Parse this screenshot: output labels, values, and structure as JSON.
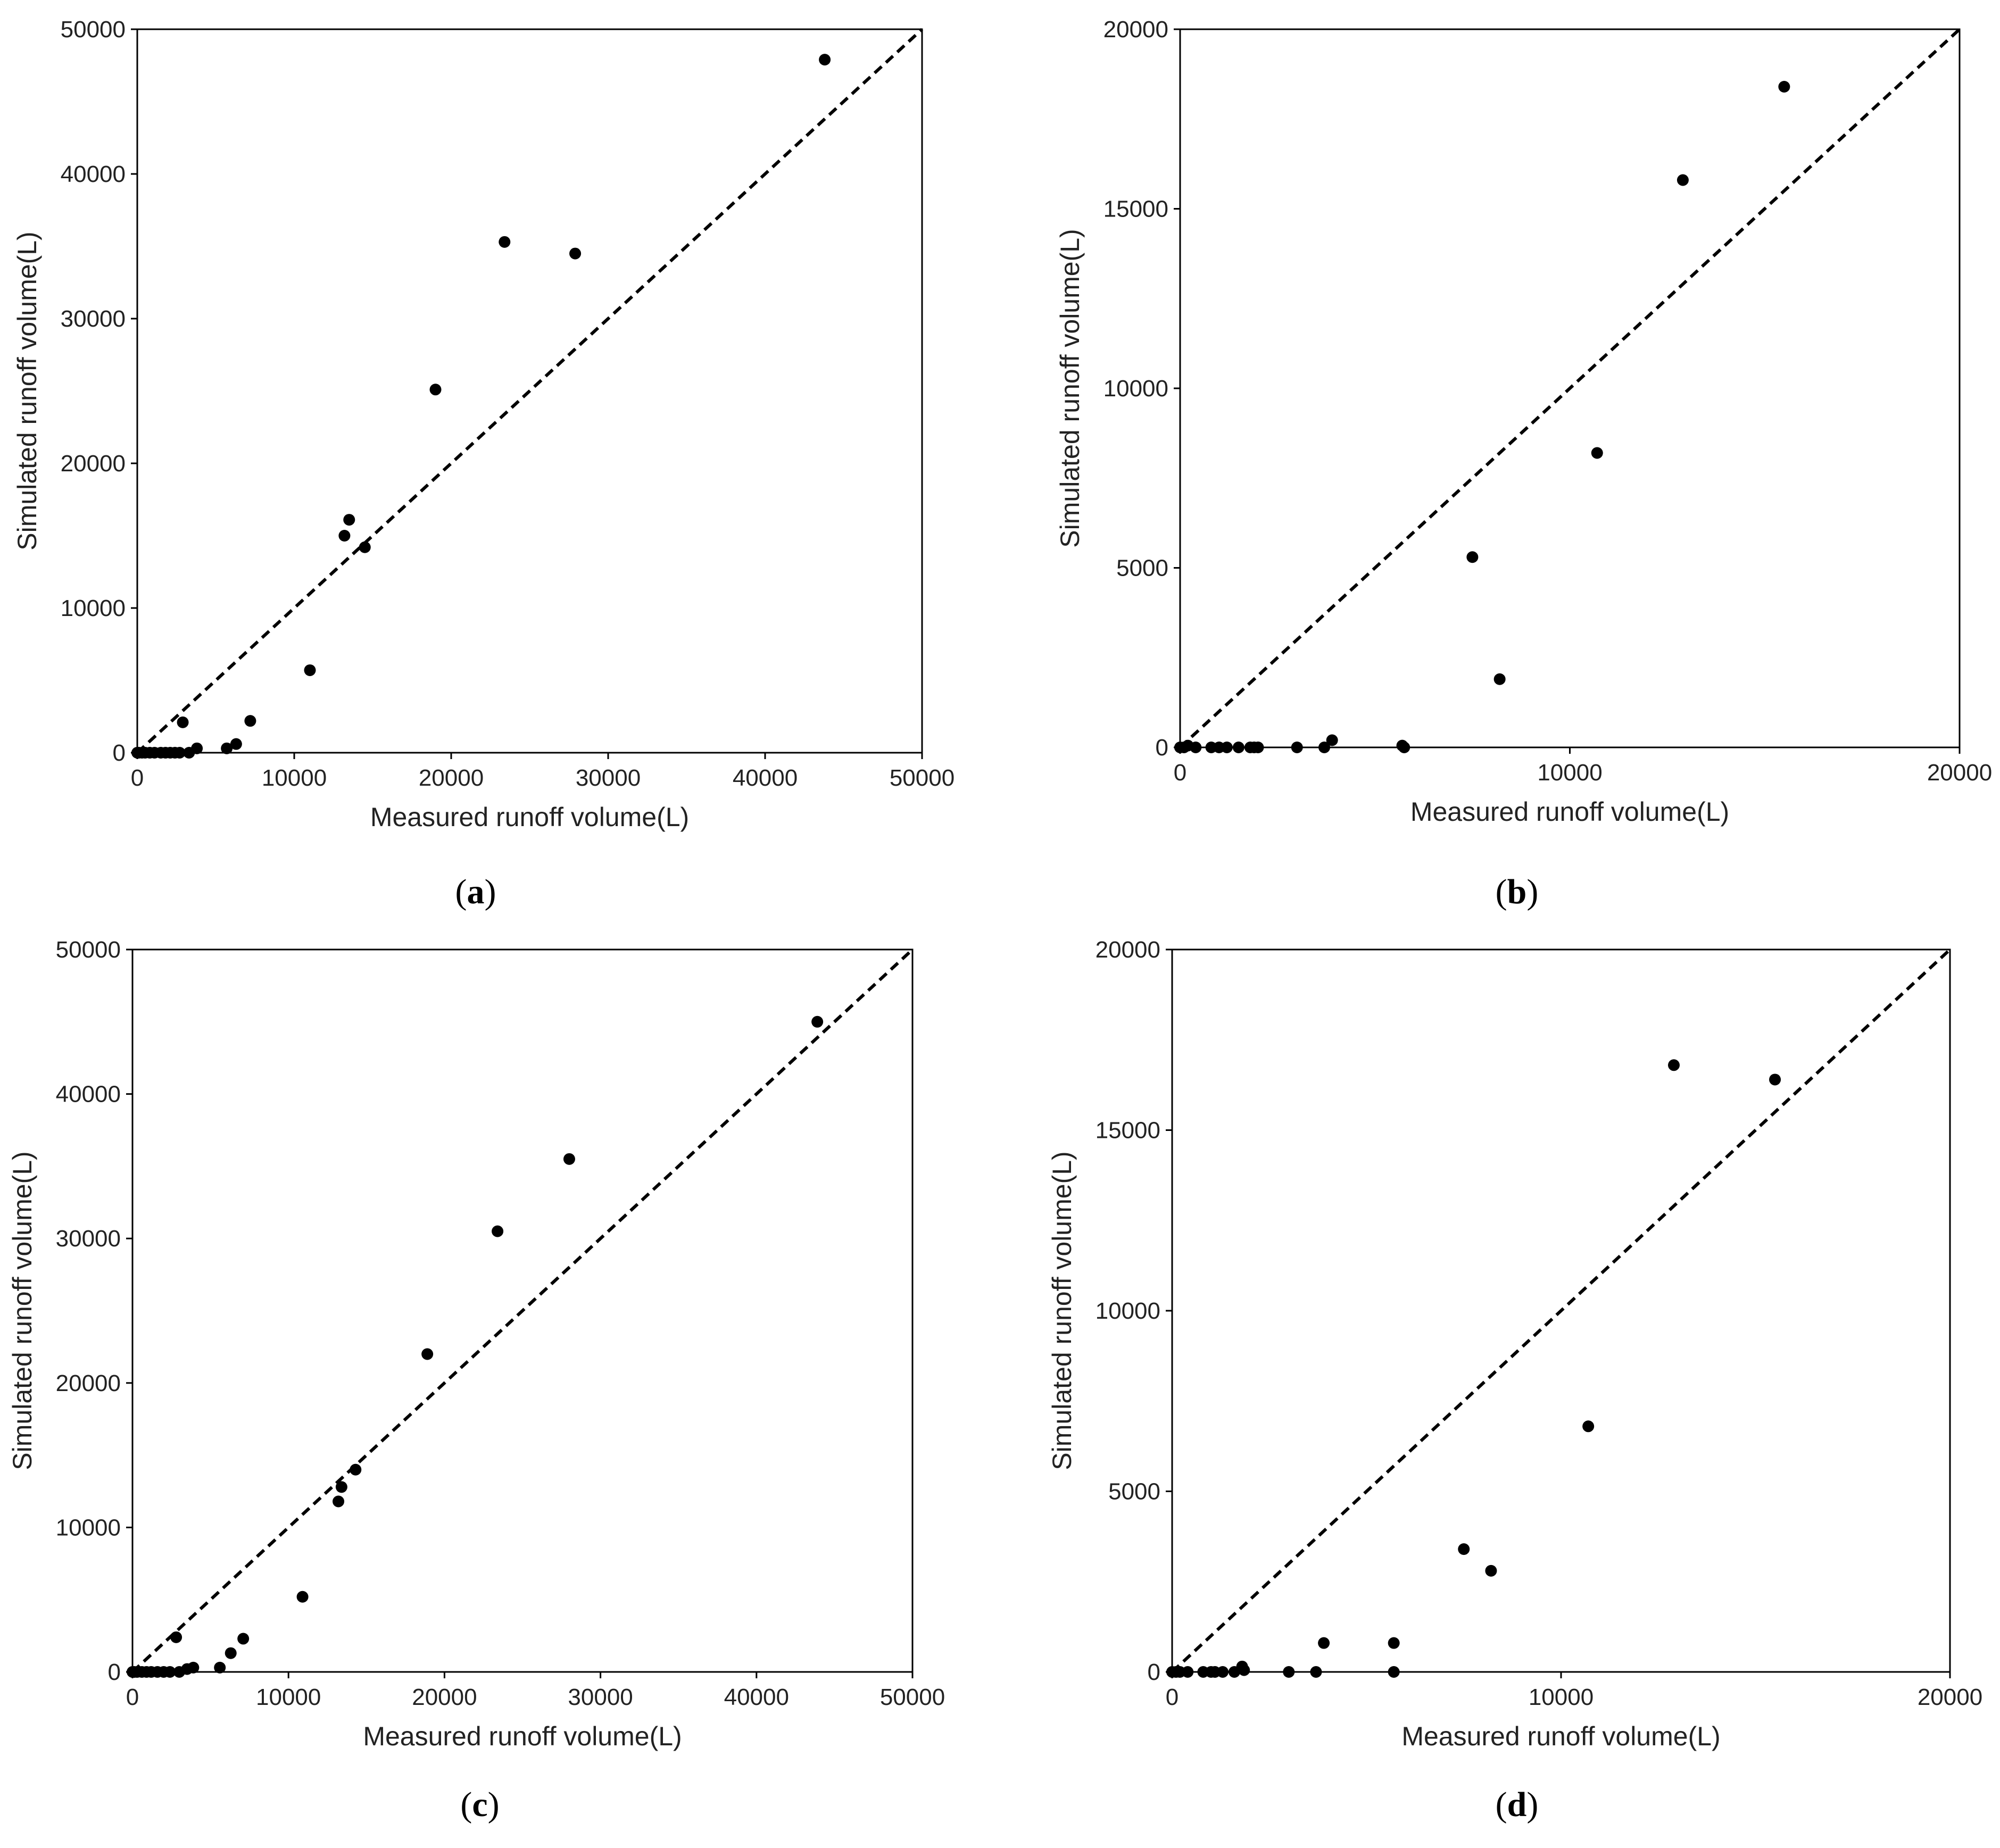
{
  "colors": {
    "background": "#ffffff",
    "frame": "#000000",
    "point": "#000000",
    "reference_line": "#000000",
    "text": "#222222"
  },
  "chart_data": [
    {
      "panel": "a",
      "type": "scatter",
      "xlabel": "Measured runoff volume(L)",
      "ylabel": "Simulated runoff volume(L)",
      "xlim": [
        0,
        50000
      ],
      "ylim": [
        0,
        50000
      ],
      "xticks": [
        0,
        10000,
        20000,
        30000,
        40000,
        50000
      ],
      "yticks": [
        0,
        10000,
        20000,
        30000,
        40000,
        50000
      ],
      "reference_line": "1:1",
      "grid": false,
      "points": [
        {
          "x": 0,
          "y": 0
        },
        {
          "x": 100,
          "y": 0
        },
        {
          "x": 300,
          "y": 0
        },
        {
          "x": 500,
          "y": 0
        },
        {
          "x": 800,
          "y": 0
        },
        {
          "x": 1100,
          "y": 0
        },
        {
          "x": 1500,
          "y": 0
        },
        {
          "x": 1800,
          "y": 0
        },
        {
          "x": 2100,
          "y": 0
        },
        {
          "x": 2400,
          "y": 0
        },
        {
          "x": 2700,
          "y": 0
        },
        {
          "x": 2900,
          "y": 2100
        },
        {
          "x": 3300,
          "y": 0
        },
        {
          "x": 3800,
          "y": 300
        },
        {
          "x": 5700,
          "y": 300
        },
        {
          "x": 6300,
          "y": 600
        },
        {
          "x": 7200,
          "y": 2200
        },
        {
          "x": 11000,
          "y": 5700
        },
        {
          "x": 13200,
          "y": 15000
        },
        {
          "x": 13500,
          "y": 16100
        },
        {
          "x": 14500,
          "y": 14200
        },
        {
          "x": 19000,
          "y": 25100
        },
        {
          "x": 23400,
          "y": 35300
        },
        {
          "x": 27900,
          "y": 34500
        },
        {
          "x": 43800,
          "y": 47900
        }
      ]
    },
    {
      "panel": "b",
      "type": "scatter",
      "xlabel": "Measured runoff volume(L)",
      "ylabel": "Simulated runoff volume(L)",
      "xlim": [
        0,
        20000
      ],
      "ylim": [
        0,
        20000
      ],
      "xticks": [
        0,
        10000,
        20000
      ],
      "yticks": [
        0,
        5000,
        10000,
        15000,
        20000
      ],
      "reference_line": "1:1",
      "grid": false,
      "points": [
        {
          "x": 0,
          "y": 0
        },
        {
          "x": 100,
          "y": 0
        },
        {
          "x": 200,
          "y": 50
        },
        {
          "x": 400,
          "y": 0
        },
        {
          "x": 800,
          "y": 0
        },
        {
          "x": 1000,
          "y": 0
        },
        {
          "x": 1200,
          "y": 0
        },
        {
          "x": 1500,
          "y": 0
        },
        {
          "x": 1800,
          "y": 0
        },
        {
          "x": 1900,
          "y": 0
        },
        {
          "x": 2000,
          "y": 0
        },
        {
          "x": 3000,
          "y": 0
        },
        {
          "x": 3700,
          "y": 0
        },
        {
          "x": 3900,
          "y": 200
        },
        {
          "x": 5700,
          "y": 50
        },
        {
          "x": 5750,
          "y": 0
        },
        {
          "x": 7500,
          "y": 5300
        },
        {
          "x": 8200,
          "y": 1900
        },
        {
          "x": 10700,
          "y": 8200
        },
        {
          "x": 12900,
          "y": 15800
        },
        {
          "x": 15500,
          "y": 18400
        }
      ]
    },
    {
      "panel": "c",
      "type": "scatter",
      "xlabel": "Measured runoff volume(L)",
      "ylabel": "Simulated runoff volume(L)",
      "xlim": [
        0,
        50000
      ],
      "ylim": [
        0,
        50000
      ],
      "xticks": [
        0,
        10000,
        20000,
        30000,
        40000,
        50000
      ],
      "yticks": [
        0,
        10000,
        20000,
        30000,
        40000,
        50000
      ],
      "reference_line": "1:1",
      "grid": false,
      "points": [
        {
          "x": 0,
          "y": 0
        },
        {
          "x": 100,
          "y": 0
        },
        {
          "x": 300,
          "y": 0
        },
        {
          "x": 600,
          "y": 0
        },
        {
          "x": 900,
          "y": 0
        },
        {
          "x": 1200,
          "y": 0
        },
        {
          "x": 1600,
          "y": 0
        },
        {
          "x": 2000,
          "y": 0
        },
        {
          "x": 2400,
          "y": 0
        },
        {
          "x": 2800,
          "y": 2400
        },
        {
          "x": 3000,
          "y": 0
        },
        {
          "x": 3500,
          "y": 200
        },
        {
          "x": 3900,
          "y": 300
        },
        {
          "x": 5600,
          "y": 300
        },
        {
          "x": 6300,
          "y": 1300
        },
        {
          "x": 7100,
          "y": 2300
        },
        {
          "x": 10900,
          "y": 5200
        },
        {
          "x": 13200,
          "y": 11800
        },
        {
          "x": 13400,
          "y": 12800
        },
        {
          "x": 14300,
          "y": 14000
        },
        {
          "x": 18900,
          "y": 22000
        },
        {
          "x": 23400,
          "y": 30500
        },
        {
          "x": 28000,
          "y": 35500
        },
        {
          "x": 43900,
          "y": 45000
        }
      ]
    },
    {
      "panel": "d",
      "type": "scatter",
      "xlabel": "Measured runoff volume(L)",
      "ylabel": "Simulated runoff volume(L)",
      "xlim": [
        0,
        20000
      ],
      "ylim": [
        0,
        20000
      ],
      "xticks": [
        0,
        10000,
        20000
      ],
      "yticks": [
        0,
        5000,
        10000,
        15000,
        20000
      ],
      "reference_line": "1:1",
      "grid": false,
      "points": [
        {
          "x": 0,
          "y": 0
        },
        {
          "x": 100,
          "y": 0
        },
        {
          "x": 200,
          "y": 0
        },
        {
          "x": 400,
          "y": 0
        },
        {
          "x": 800,
          "y": 0
        },
        {
          "x": 1000,
          "y": 0
        },
        {
          "x": 1100,
          "y": 0
        },
        {
          "x": 1300,
          "y": 0
        },
        {
          "x": 1600,
          "y": 0
        },
        {
          "x": 1800,
          "y": 150
        },
        {
          "x": 1850,
          "y": 50
        },
        {
          "x": 3000,
          "y": 0
        },
        {
          "x": 3700,
          "y": 0
        },
        {
          "x": 3900,
          "y": 800
        },
        {
          "x": 5700,
          "y": 800
        },
        {
          "x": 5700,
          "y": 0
        },
        {
          "x": 7500,
          "y": 3400
        },
        {
          "x": 8200,
          "y": 2800
        },
        {
          "x": 10700,
          "y": 6800
        },
        {
          "x": 12900,
          "y": 16800
        },
        {
          "x": 15500,
          "y": 16400
        }
      ]
    }
  ]
}
